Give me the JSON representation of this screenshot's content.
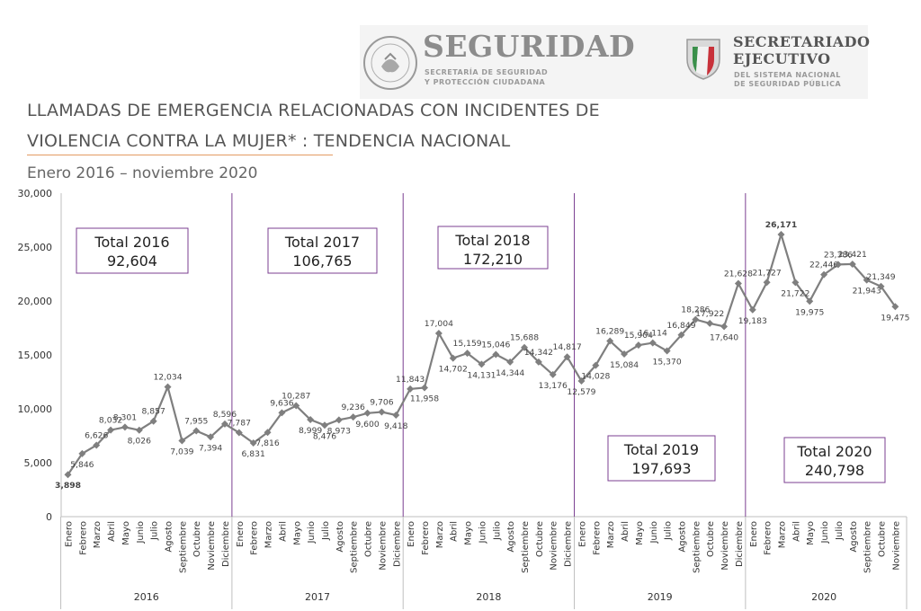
{
  "header": {
    "brand1_title": "SEGURIDAD",
    "brand1_sub1": "SECRETARÍA DE SEGURIDAD",
    "brand1_sub2": "Y PROTECCIÓN CIUDADANA",
    "seal_text": "ESTADOS UNIDOS MEXICANOS",
    "brand2_title1": "SECRETARIADO",
    "brand2_title2": "EJECUTIVO",
    "brand2_sub1": "DEL SISTEMA NACIONAL",
    "brand2_sub2": "DE SEGURIDAD PÚBLICA"
  },
  "page": {
    "title_line1": "LLAMADAS DE EMERGENCIA RELACIONADAS CON INCIDENTES DE",
    "title_line2": "VIOLENCIA CONTRA LA MUJER* : TENDENCIA NACIONAL",
    "subtitle": "Enero 2016 – noviembre 2020"
  },
  "chart_data": {
    "type": "line",
    "ylim": [
      0,
      30000
    ],
    "yticks": [
      0,
      5000,
      10000,
      15000,
      20000,
      25000,
      30000
    ],
    "ytick_labels": [
      "0",
      "5,000",
      "10,000",
      "15,000",
      "20,000",
      "25,000",
      "30,000"
    ],
    "x": [
      "Enero",
      "Febrero",
      "Marzo",
      "Abril",
      "Mayo",
      "Junio",
      "Julio",
      "Agosto",
      "Septiembre",
      "Octubre",
      "Noviembre",
      "Diciembre",
      "Enero",
      "Febrero",
      "Marzo",
      "Abril",
      "Mayo",
      "Junio",
      "Julio",
      "Agosto",
      "Septiembre",
      "Octubre",
      "Noviembre",
      "Diciembre",
      "Enero",
      "Febrero",
      "Marzo",
      "Abril",
      "Mayo",
      "Junio",
      "Julio",
      "Agosto",
      "Septiembre",
      "Octubre",
      "Noviembre",
      "Diciembre",
      "Enero",
      "Febrero",
      "Marzo",
      "Abril",
      "Mayo",
      "Junio",
      "Julio",
      "Agosto",
      "Septiembre",
      "Octubre",
      "Noviembre",
      "Diciembre",
      "Enero",
      "Febrero",
      "Marzo",
      "Abril",
      "Mayo",
      "Junio",
      "Julio",
      "Agosto",
      "Septiembre",
      "Octubre",
      "Noviembre"
    ],
    "values": [
      3898,
      5846,
      6626,
      8032,
      8301,
      8026,
      8857,
      12034,
      7039,
      7955,
      7394,
      8596,
      7787,
      6831,
      7816,
      9636,
      10287,
      8999,
      8476,
      8973,
      9236,
      9600,
      9706,
      9418,
      11843,
      11958,
      17004,
      14702,
      15159,
      14131,
      15046,
      14344,
      15688,
      14342,
      13176,
      14817,
      12579,
      14028,
      16289,
      15084,
      15904,
      16114,
      15370,
      16849,
      18286,
      17922,
      17640,
      21628,
      19183,
      21727,
      26171,
      21722,
      19975,
      22446,
      23386,
      23421,
      21943,
      21349,
      19475
    ],
    "labels": [
      "3,898",
      "5,846",
      "6,626",
      "8,032",
      "8,301",
      "8,026",
      "8,857",
      "12,034",
      "7,039",
      "7,955",
      "7,394",
      "8,596",
      "7,787",
      "6,831",
      "7,816",
      "9,636",
      "10,287",
      "8,999",
      "8,476",
      "8,973",
      "9,236",
      "9,600",
      "9,706",
      "9,418",
      "11,843",
      "11,958",
      "17,004",
      "14,702",
      "15,159",
      "14,131",
      "15,046",
      "14,344",
      "15,688",
      "14,342",
      "13,176",
      "14,817",
      "12,579",
      "14,028",
      "16,289",
      "15,084",
      "15,904",
      "16,114",
      "15,370",
      "16,849",
      "18,286",
      "17,922",
      "17,640",
      "21,628",
      "19,183",
      "21,727",
      "26,171",
      "21,722",
      "19,975",
      "22,446",
      "23,386",
      "23,421",
      "21,943",
      "21,349",
      "19,475"
    ],
    "label_positions": [
      "below",
      "below",
      "above",
      "above",
      "above",
      "below",
      "above",
      "above",
      "below",
      "above",
      "below",
      "above",
      "above",
      "below",
      "below",
      "above",
      "above",
      "below",
      "below",
      "below",
      "above",
      "below",
      "above",
      "below",
      "above",
      "below",
      "above",
      "below",
      "above",
      "below",
      "above",
      "below",
      "above",
      "above",
      "below",
      "above",
      "below",
      "below",
      "above",
      "below",
      "above",
      "above",
      "below",
      "above",
      "above",
      "above",
      "below",
      "above",
      "below",
      "above",
      "above",
      "below",
      "below",
      "above",
      "above",
      "above",
      "below",
      "above",
      "below"
    ],
    "highlight": {
      "min_index": 0,
      "min_color": "#1aa64a",
      "max_index": 50,
      "max_color": "#e02020"
    },
    "years": [
      "2016",
      "2017",
      "2018",
      "2019",
      "2020"
    ],
    "totals": [
      {
        "year_label": "Total 2016",
        "value": "92,604"
      },
      {
        "year_label": "Total 2017",
        "value": "106,765"
      },
      {
        "year_label": "Total 2018",
        "value": "172,210"
      },
      {
        "year_label": "Total 2019",
        "value": "197,693"
      },
      {
        "year_label": "Total 2020",
        "value": "240,798"
      }
    ],
    "line_color": "#7f7f7f",
    "divider_color": "#7b3f91",
    "grid": false
  }
}
